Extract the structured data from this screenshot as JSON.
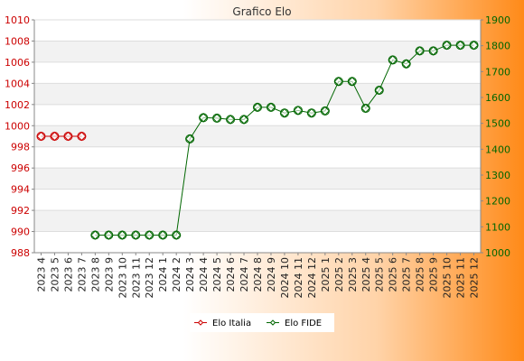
{
  "chart_data": {
    "type": "line",
    "title": "Grafico Elo",
    "x": [
      "2023 4",
      "2023 5",
      "2023 6",
      "2023 7",
      "2023 8",
      "2023 9",
      "2023 10",
      "2023 11",
      "2023 12",
      "2024 1",
      "2024 2",
      "2024 3",
      "2024 4",
      "2024 5",
      "2024 6",
      "2024 7",
      "2024 8",
      "2024 9",
      "2024 10",
      "2024 11",
      "2024 12",
      "2025 1",
      "2025 2",
      "2025 3",
      "2025 4",
      "2025 5",
      "2025 6",
      "2025 7",
      "2025 8",
      "2025 9",
      "2025 10",
      "2025 11",
      "2025 12"
    ],
    "y_left": {
      "ticks": [
        "988",
        "990",
        "992",
        "994",
        "996",
        "998",
        "1000",
        "1002",
        "1004",
        "1006",
        "1008",
        "1010"
      ],
      "range": [
        988,
        1010
      ]
    },
    "y_right": {
      "ticks": [
        "1000",
        "1100",
        "1200",
        "1300",
        "1400",
        "1500",
        "1600",
        "1700",
        "1800",
        "1900"
      ],
      "range": [
        1000,
        1900
      ]
    },
    "series": [
      {
        "name": "Elo Italia",
        "axis": "left",
        "color": "#cc0000",
        "values": [
          999,
          999,
          999,
          999,
          null,
          null,
          null,
          null,
          null,
          null,
          null,
          null,
          null,
          null,
          null,
          null,
          null,
          null,
          null,
          null,
          null,
          null,
          null,
          null,
          null,
          null,
          null,
          null,
          null,
          null,
          null,
          null,
          null
        ]
      },
      {
        "name": "Elo FIDE",
        "axis": "right",
        "color": "#006600",
        "values": [
          null,
          null,
          null,
          null,
          1068,
          1068,
          1068,
          1068,
          1068,
          1068,
          1068,
          1440,
          1522,
          1520,
          1515,
          1515,
          1562,
          1562,
          1540,
          1550,
          1540,
          1548,
          1662,
          1662,
          1558,
          1628,
          1745,
          1730,
          1780,
          1780,
          1802,
          1802,
          1802
        ]
      }
    ],
    "grid": true,
    "legend": "bottom"
  }
}
